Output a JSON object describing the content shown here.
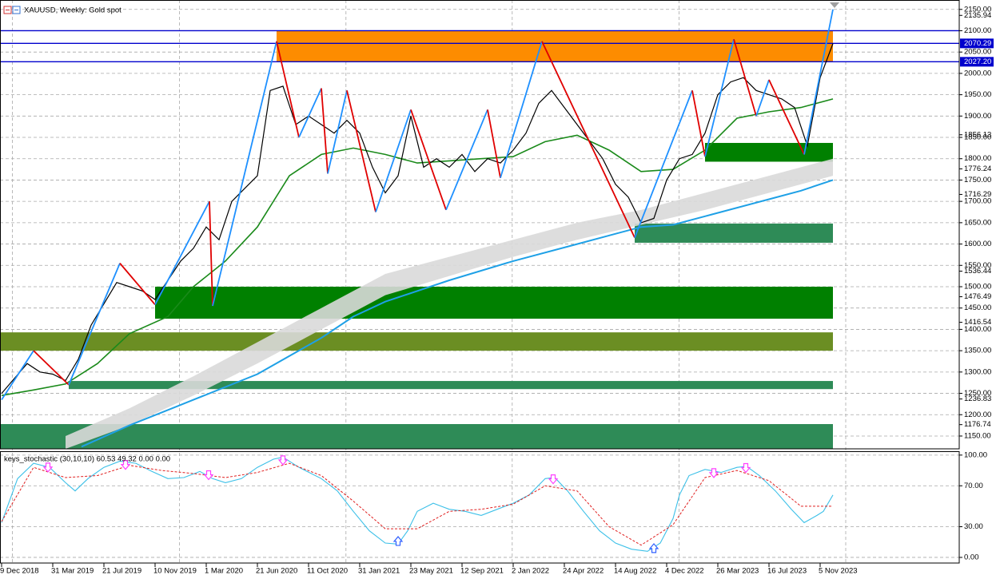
{
  "chart_data": [
    {
      "type": "line",
      "title": "XAUUSD, Weekly:  Gold spot",
      "xlim": [
        -0.5,
        299.5
      ],
      "ylim": [
        1120,
        2172
      ],
      "grid": true,
      "xticks": [
        {
          "value": 0,
          "label": "9 Dec 2018"
        },
        {
          "value": 16,
          "label": "31 Mar 2019"
        },
        {
          "value": 32,
          "label": "21 Jul 2019"
        },
        {
          "value": 48,
          "label": "10 Nov 2019"
        },
        {
          "value": 64,
          "label": "1 Mar 2020"
        },
        {
          "value": 80,
          "label": "21 Jun 2020"
        },
        {
          "value": 96,
          "label": "11 Oct 2020"
        },
        {
          "value": 112,
          "label": "31 Jan 2021"
        },
        {
          "value": 128,
          "label": "23 May 2021"
        },
        {
          "value": 144,
          "label": "12 Sep 2021"
        },
        {
          "value": 160,
          "label": "2 Jan 2022"
        },
        {
          "value": 176,
          "label": "24 Apr 2022"
        },
        {
          "value": 192,
          "label": "14 Aug 2022"
        },
        {
          "value": 208,
          "label": "4 Dec 2022"
        },
        {
          "value": 224,
          "label": "26 Mar 2023"
        },
        {
          "value": 240,
          "label": "16 Jul 2023"
        },
        {
          "value": 256,
          "label": "5 Nov 2023"
        }
      ],
      "vgrid": [
        3.4,
        55.6,
        107.7,
        159.7,
        211.9,
        264
      ],
      "yticks": [
        {
          "value": 1150,
          "label": "1150.00"
        },
        {
          "value": 1200,
          "label": "1200.00"
        },
        {
          "value": 1250,
          "label": "1250.00"
        },
        {
          "value": 1300,
          "label": "1300.00"
        },
        {
          "value": 1350,
          "label": "1350.00"
        },
        {
          "value": 1400,
          "label": "1400.00"
        },
        {
          "value": 1450,
          "label": "1450.00"
        },
        {
          "value": 1500,
          "label": "1500.00"
        },
        {
          "value": 1550,
          "label": "1550.00"
        },
        {
          "value": 1600,
          "label": "1600.00"
        },
        {
          "value": 1650,
          "label": "1650.00"
        },
        {
          "value": 1700,
          "label": "1700.00"
        },
        {
          "value": 1750,
          "label": "1750.00"
        },
        {
          "value": 1800,
          "label": "1800.00"
        },
        {
          "value": 1850,
          "label": "1850.00"
        },
        {
          "value": 1900,
          "label": "1900.00"
        },
        {
          "value": 1950,
          "label": "1950.00"
        },
        {
          "value": 2000,
          "label": "2000.00"
        },
        {
          "value": 2050,
          "label": "2050.00"
        },
        {
          "value": 2100,
          "label": "2100.00"
        },
        {
          "value": 2150,
          "label": "2150.00"
        }
      ],
      "price_labels": [
        {
          "value": 2135.94,
          "label": "2135.94"
        },
        {
          "value": 1856.13,
          "label": "1856.13"
        },
        {
          "value": 1776.24,
          "label": "1776.24"
        },
        {
          "value": 1716.29,
          "label": "1716.29"
        },
        {
          "value": 1536.44,
          "label": "1536.44"
        },
        {
          "value": 1476.49,
          "label": "1476.49"
        },
        {
          "value": 1416.54,
          "label": "1416.54"
        },
        {
          "value": 1236.83,
          "label": "1236.83"
        },
        {
          "value": 1176.74,
          "label": "1176.74"
        }
      ],
      "zones": [
        {
          "x": [
            86,
            260
          ],
          "y": [
            2027.2,
            2100
          ],
          "color": "#fd8c00"
        },
        {
          "x": [
            220,
            260
          ],
          "y": [
            1793,
            1837
          ],
          "color": "#008000"
        },
        {
          "x": [
            198,
            260
          ],
          "y": [
            1603,
            1648
          ],
          "color": "#2e8b57"
        },
        {
          "x": [
            48,
            260
          ],
          "y": [
            1425,
            1500
          ],
          "color": "#008000"
        },
        {
          "x": [
            -0.5,
            260
          ],
          "y": [
            1350,
            1393
          ],
          "color": "#6b8e23"
        },
        {
          "x": [
            21,
            260
          ],
          "y": [
            1260,
            1279
          ],
          "color": "#2e8b57"
        },
        {
          "x": [
            -0.5,
            260
          ],
          "y": [
            1120,
            1178
          ],
          "color": "#2e8b57"
        }
      ],
      "envelope": {
        "x": [
          20,
          40,
          60,
          80,
          100,
          120,
          140,
          160,
          180,
          200,
          220,
          240,
          260
        ],
        "upper": [
          1150,
          1215,
          1290,
          1370,
          1450,
          1530,
          1570,
          1610,
          1650,
          1680,
          1720,
          1760,
          1800
        ],
        "lower": [
          1120,
          1175,
          1245,
          1320,
          1400,
          1480,
          1525,
          1570,
          1610,
          1645,
          1680,
          1720,
          1760
        ],
        "color": "#d9d9d9"
      },
      "ma_fast": {
        "x": [
          0,
          10,
          20,
          30,
          40,
          52,
          60,
          70,
          80,
          90,
          100,
          110,
          120,
          130,
          140,
          150,
          160,
          170,
          180,
          190,
          200,
          210,
          220,
          230,
          240,
          250,
          260
        ],
        "values": [
          1245,
          1258,
          1272,
          1320,
          1390,
          1430,
          1500,
          1560,
          1640,
          1760,
          1810,
          1825,
          1810,
          1790,
          1795,
          1800,
          1805,
          1840,
          1855,
          1820,
          1770,
          1775,
          1820,
          1895,
          1910,
          1920,
          1940
        ],
        "color": "#1a8a1a"
      },
      "ma_slow": {
        "x": [
          25,
          40,
          60,
          80,
          100,
          110,
          120,
          140,
          160,
          180,
          200,
          210,
          220,
          240,
          250,
          260
        ],
        "values": [
          1125,
          1175,
          1235,
          1295,
          1380,
          1430,
          1465,
          1515,
          1560,
          1600,
          1640,
          1645,
          1665,
          1705,
          1725,
          1750
        ],
        "color": "#1ea0e6"
      },
      "close": {
        "x": [
          0,
          4,
          8,
          12,
          16,
          20,
          24,
          28,
          32,
          36,
          40,
          44,
          48,
          52,
          56,
          60,
          64,
          68,
          72,
          76,
          80,
          84,
          88,
          92,
          96,
          100,
          104,
          108,
          112,
          116,
          120,
          124,
          128,
          132,
          136,
          140,
          144,
          148,
          152,
          156,
          160,
          164,
          168,
          172,
          176,
          180,
          184,
          188,
          192,
          196,
          200,
          204,
          208,
          212,
          216,
          220,
          224,
          228,
          232,
          236,
          240,
          244,
          248,
          252,
          256,
          260
        ],
        "values": [
          1250,
          1285,
          1320,
          1300,
          1295,
          1280,
          1330,
          1410,
          1460,
          1510,
          1500,
          1490,
          1470,
          1515,
          1560,
          1590,
          1640,
          1610,
          1700,
          1730,
          1760,
          1960,
          1970,
          1880,
          1900,
          1880,
          1860,
          1890,
          1860,
          1780,
          1720,
          1760,
          1900,
          1780,
          1800,
          1780,
          1810,
          1770,
          1800,
          1790,
          1820,
          1860,
          1930,
          1960,
          1920,
          1880,
          1840,
          1800,
          1740,
          1710,
          1650,
          1660,
          1750,
          1800,
          1810,
          1860,
          1950,
          1980,
          1990,
          1960,
          1950,
          1940,
          1920,
          1830,
          1990,
          2070
        ],
        "color": "#000000"
      },
      "zigzag": {
        "x": [
          0,
          10,
          21,
          37,
          48,
          65,
          66,
          86,
          93,
          100,
          102,
          108,
          117,
          128,
          139,
          152,
          156,
          169,
          198,
          216,
          220,
          229,
          236,
          240,
          251,
          260
        ],
        "values": [
          1235,
          1350,
          1270,
          1555,
          1458,
          1700,
          1455,
          2075,
          1850,
          1965,
          1765,
          1960,
          1675,
          1915,
          1680,
          1915,
          1755,
          2075,
          1615,
          1960,
          1805,
          2080,
          1900,
          1985,
          1810,
          2150
        ],
        "up_color": "#1e90ff",
        "down_color": "#e00000"
      },
      "levels": {
        "values": [
          2100,
          2070.29,
          2027.2
        ],
        "color": "#0000cd"
      },
      "level_labels": [
        {
          "value": 2070.29,
          "label": "2070.29"
        },
        {
          "value": 2027.2,
          "label": "2027.20"
        }
      ]
    },
    {
      "type": "line",
      "title": "keys_stochastic (30,10,10) 60.53 49.32 0.00 0.00",
      "ylim": [
        -5.5,
        103
      ],
      "yticks": [
        {
          "value": 0,
          "label": "0.00"
        },
        {
          "value": 30,
          "label": "30.00"
        },
        {
          "value": 70,
          "label": "70.00"
        },
        {
          "value": 100,
          "label": "100.00"
        }
      ],
      "main": {
        "x": [
          0,
          5,
          10,
          15,
          20,
          23,
          27,
          32,
          37,
          42,
          47,
          52,
          57,
          62,
          66,
          70,
          75,
          80,
          85,
          88,
          93,
          100,
          105,
          110,
          115,
          120,
          124,
          127,
          130,
          135,
          140,
          145,
          150,
          155,
          160,
          165,
          170,
          173,
          177,
          182,
          187,
          192,
          197,
          202,
          206,
          210,
          212,
          215,
          220,
          225,
          230,
          233,
          237,
          242,
          247,
          251,
          255,
          257,
          260
        ],
        "values": [
          34,
          77,
          92,
          88,
          73,
          65,
          77,
          88,
          94,
          92,
          84,
          77,
          78,
          84,
          77,
          73,
          77,
          88,
          96,
          98,
          88,
          77,
          65,
          45,
          26,
          14,
          13,
          26,
          45,
          53,
          47,
          45,
          41,
          47,
          53,
          61,
          77,
          78,
          65,
          45,
          26,
          14,
          8,
          6,
          14,
          38,
          61,
          80,
          86,
          83,
          88,
          89,
          80,
          65,
          47,
          34,
          41,
          45,
          61
        ],
        "color": "#3cc0e8"
      },
      "signal": {
        "x": [
          0,
          10,
          20,
          30,
          40,
          50,
          60,
          70,
          80,
          90,
          100,
          110,
          120,
          130,
          140,
          150,
          160,
          170,
          180,
          190,
          200,
          210,
          220,
          230,
          240,
          250,
          260
        ],
        "values": [
          35,
          88,
          78,
          80,
          90,
          85,
          82,
          78,
          83,
          92,
          80,
          55,
          28,
          28,
          45,
          47,
          52,
          70,
          65,
          30,
          12,
          32,
          78,
          85,
          75,
          50,
          50
        ],
        "color": "#e02020"
      },
      "sell": {
        "x": [
          14.5,
          38.75,
          64.75,
          88,
          172.5,
          222.75,
          232.75
        ],
        "values": [
          87.5,
          90,
          80,
          94.5,
          76,
          82,
          87
        ],
        "color": "#ff40ff"
      },
      "buy": {
        "x": [
          124,
          204
        ],
        "values": [
          16.4,
          9.4
        ],
        "color": "#3060ff"
      }
    }
  ]
}
